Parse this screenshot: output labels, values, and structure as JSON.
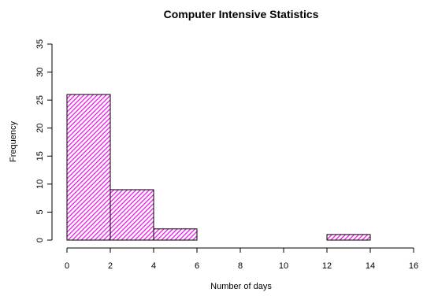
{
  "chart_data": {
    "type": "bar",
    "title": "Computer Intensive Statistics",
    "xlabel": "Number of days",
    "ylabel": "Frequency",
    "bins": [
      {
        "x0": 0,
        "x1": 2,
        "count": 26
      },
      {
        "x0": 2,
        "x1": 4,
        "count": 9
      },
      {
        "x0": 4,
        "x1": 6,
        "count": 2
      },
      {
        "x0": 6,
        "x1": 8,
        "count": 0
      },
      {
        "x0": 8,
        "x1": 10,
        "count": 0
      },
      {
        "x0": 10,
        "x1": 12,
        "count": 0
      },
      {
        "x0": 12,
        "x1": 14,
        "count": 1
      },
      {
        "x0": 14,
        "x1": 16,
        "count": 0
      }
    ],
    "xlim": [
      0,
      16
    ],
    "ylim": [
      0,
      35
    ],
    "xticks": [
      0,
      2,
      4,
      6,
      8,
      10,
      12,
      14,
      16
    ],
    "yticks": [
      0,
      5,
      10,
      15,
      20,
      25,
      30,
      35
    ],
    "grid": false,
    "bar_fill": "#ee11ee",
    "bar_pattern": "diagonal hatching"
  }
}
